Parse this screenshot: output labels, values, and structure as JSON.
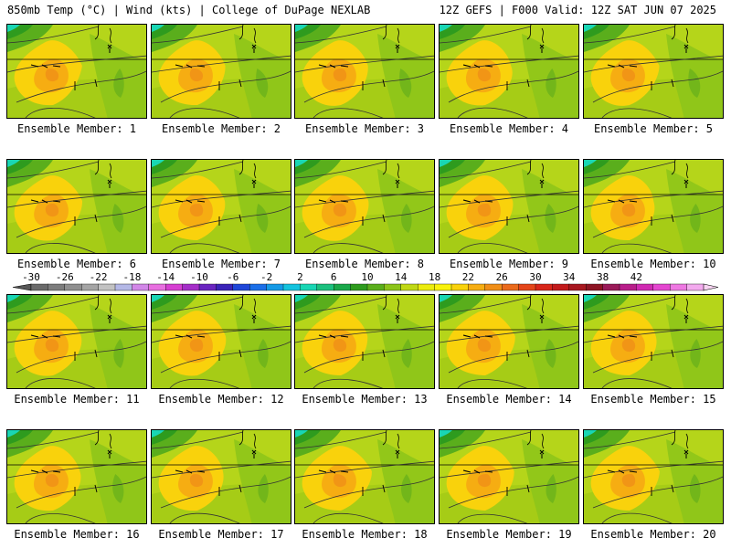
{
  "header": {
    "left_title": "850mb Temp (°C) | Wind (kts) | College of DuPage NEXLAB",
    "right_title": "12Z GEFS | F000 Valid: 12Z SAT JUN 07 2025"
  },
  "panels": [
    {
      "label": "Ensemble Member: 1"
    },
    {
      "label": "Ensemble Member: 2"
    },
    {
      "label": "Ensemble Member: 3"
    },
    {
      "label": "Ensemble Member: 4"
    },
    {
      "label": "Ensemble Member: 5"
    },
    {
      "label": "Ensemble Member: 6"
    },
    {
      "label": "Ensemble Member: 7"
    },
    {
      "label": "Ensemble Member: 8"
    },
    {
      "label": "Ensemble Member: 9"
    },
    {
      "label": "Ensemble Member: 10"
    },
    {
      "label": "Ensemble Member: 11"
    },
    {
      "label": "Ensemble Member: 12"
    },
    {
      "label": "Ensemble Member: 13"
    },
    {
      "label": "Ensemble Member: 14"
    },
    {
      "label": "Ensemble Member: 15"
    },
    {
      "label": "Ensemble Member: 16"
    },
    {
      "label": "Ensemble Member: 17"
    },
    {
      "label": "Ensemble Member: 18"
    },
    {
      "label": "Ensemble Member: 19"
    },
    {
      "label": "Ensemble Member: 20"
    }
  ],
  "colorbar": {
    "tick_labels": [
      "-30",
      "-26",
      "-22",
      "-18",
      "-14",
      "-10",
      "-6",
      "-2",
      "2",
      "6",
      "10",
      "14",
      "18",
      "22",
      "26",
      "30",
      "34",
      "38",
      "42"
    ],
    "colors": [
      "#6a6a6a",
      "#7d7d7d",
      "#8f8f8f",
      "#a5a5a5",
      "#c2c2c2",
      "#b4b8e6",
      "#d287e8",
      "#e86fe0",
      "#d63fd2",
      "#a52ec8",
      "#6a25c0",
      "#3a24b8",
      "#1f46d8",
      "#1b6fe8",
      "#159ae6",
      "#14c3de",
      "#19d6b4",
      "#1cc07e",
      "#1aa84a",
      "#2e9b1e",
      "#5aae1c",
      "#8cc41a",
      "#c0d815",
      "#ecec0e",
      "#f9f20c",
      "#f9d20c",
      "#f6ad12",
      "#f08e18",
      "#ea6a1c",
      "#e4451a",
      "#d8261a",
      "#c21a1c",
      "#a81820",
      "#8d1424",
      "#9a1a58",
      "#b81e8a",
      "#d02ab2",
      "#e446d0",
      "#ee78e2",
      "#f3aaee"
    ]
  }
}
